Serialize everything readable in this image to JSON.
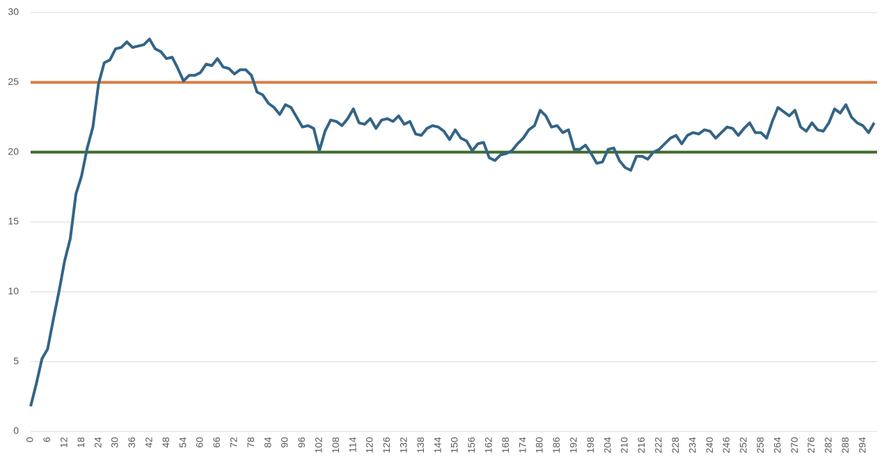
{
  "chart_data": {
    "type": "line",
    "x": [
      0,
      2,
      4,
      6,
      8,
      10,
      12,
      14,
      16,
      18,
      20,
      22,
      24,
      26,
      28,
      30,
      32,
      34,
      36,
      38,
      40,
      42,
      44,
      46,
      48,
      50,
      52,
      54,
      56,
      58,
      60,
      62,
      64,
      66,
      68,
      70,
      72,
      74,
      76,
      78,
      80,
      82,
      84,
      86,
      88,
      90,
      92,
      94,
      96,
      98,
      100,
      102,
      104,
      106,
      108,
      110,
      112,
      114,
      116,
      118,
      120,
      122,
      124,
      126,
      128,
      130,
      132,
      134,
      136,
      138,
      140,
      142,
      144,
      146,
      148,
      150,
      152,
      154,
      156,
      158,
      160,
      162,
      164,
      166,
      168,
      170,
      172,
      174,
      176,
      178,
      180,
      182,
      184,
      186,
      188,
      190,
      192,
      194,
      196,
      198,
      200,
      202,
      204,
      206,
      208,
      210,
      212,
      214,
      216,
      218,
      220,
      222,
      224,
      226,
      228,
      230,
      232,
      234,
      236,
      238,
      240,
      242,
      244,
      246,
      248,
      250,
      252,
      254,
      256,
      258,
      260,
      262,
      264,
      266,
      268,
      270,
      272,
      274,
      276,
      278,
      280,
      282,
      284,
      286,
      288,
      290,
      292,
      294,
      296,
      298
    ],
    "series": [
      {
        "color": "#336486",
        "values": [
          1.8,
          3.4,
          5.2,
          5.9,
          8,
          10,
          12.2,
          13.8,
          17,
          18.3,
          20.3,
          21.8,
          24.9,
          26.4,
          26.6,
          27.4,
          27.5,
          27.9,
          27.5,
          27.6,
          27.7,
          28.1,
          27.4,
          27.2,
          26.7,
          26.8,
          26,
          25.1,
          25.5,
          25.5,
          25.7,
          26.3,
          26.2,
          26.7,
          26.1,
          26,
          25.6,
          25.9,
          25.9,
          25.5,
          24.3,
          24.1,
          23.5,
          23.2,
          22.7,
          23.4,
          23.2,
          22.5,
          21.8,
          21.9,
          21.7,
          20.1,
          21.5,
          22.3,
          22.2,
          21.9,
          22.4,
          23.1,
          22.1,
          22,
          22.4,
          21.7,
          22.3,
          22.4,
          22.2,
          22.6,
          22,
          22.2,
          21.3,
          21.2,
          21.7,
          21.9,
          21.8,
          21.5,
          20.9,
          21.6,
          21,
          20.8,
          20.1,
          20.6,
          20.7,
          19.6,
          19.4,
          19.8,
          19.9,
          20.1,
          20.6,
          21,
          21.6,
          21.9,
          23,
          22.6,
          21.8,
          21.9,
          21.4,
          21.6,
          20.2,
          20.2,
          20.5,
          19.9,
          19.2,
          19.3,
          20.2,
          20.3,
          19.4,
          18.9,
          18.7,
          19.7,
          19.7,
          19.5,
          20,
          20.2,
          20.6,
          21,
          21.2,
          20.6,
          21.2,
          21.4,
          21.3,
          21.6,
          21.5,
          21,
          21.4,
          21.8,
          21.7,
          21.2,
          21.7,
          22.1,
          21.4,
          21.4,
          21,
          22.2,
          23.2,
          22.9,
          22.6,
          23,
          21.8,
          21.5,
          22.1,
          21.6,
          21.5,
          22.1,
          23.1,
          22.8,
          23.4,
          22.5,
          22.1,
          21.9,
          21.4,
          22.1
        ]
      }
    ],
    "reference_lines": [
      {
        "value": 25,
        "color": "#d97c45"
      },
      {
        "value": 20,
        "color": "#3d6b2b"
      }
    ],
    "xlim": [
      0,
      299
    ],
    "xticks": [
      0,
      6,
      12,
      18,
      24,
      30,
      36,
      42,
      48,
      54,
      60,
      66,
      72,
      78,
      84,
      90,
      96,
      102,
      108,
      114,
      120,
      126,
      132,
      138,
      144,
      150,
      156,
      162,
      168,
      174,
      180,
      186,
      192,
      198,
      204,
      210,
      216,
      222,
      228,
      234,
      240,
      246,
      252,
      258,
      264,
      270,
      276,
      282,
      288,
      294
    ],
    "ylim": [
      0,
      30
    ],
    "yticks": [
      0,
      5,
      10,
      15,
      20,
      25,
      30
    ],
    "grid": true
  }
}
